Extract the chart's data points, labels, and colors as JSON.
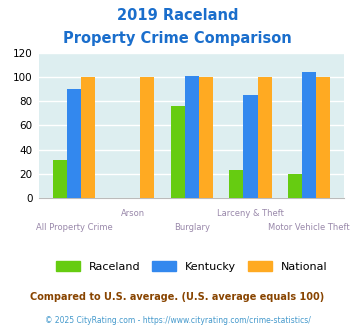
{
  "title_line1": "2019 Raceland",
  "title_line2": "Property Crime Comparison",
  "categories": [
    "All Property Crime",
    "Arson",
    "Burglary",
    "Larceny & Theft",
    "Motor Vehicle Theft"
  ],
  "raceland": [
    31,
    0,
    76,
    23,
    20
  ],
  "kentucky": [
    90,
    0,
    101,
    85,
    104
  ],
  "national": [
    100,
    100,
    100,
    100,
    100
  ],
  "color_raceland": "#66cc11",
  "color_kentucky": "#3388ee",
  "color_national": "#ffaa22",
  "ylim": [
    0,
    120
  ],
  "yticks": [
    0,
    20,
    40,
    60,
    80,
    100,
    120
  ],
  "footnote1": "Compared to U.S. average. (U.S. average equals 100)",
  "footnote2": "© 2025 CityRating.com - https://www.cityrating.com/crime-statistics/",
  "bg_color": "#ddeef0",
  "title_color": "#1a6ecc",
  "label_color": "#9988aa",
  "footnote1_color": "#884400",
  "footnote2_color": "#4499cc"
}
